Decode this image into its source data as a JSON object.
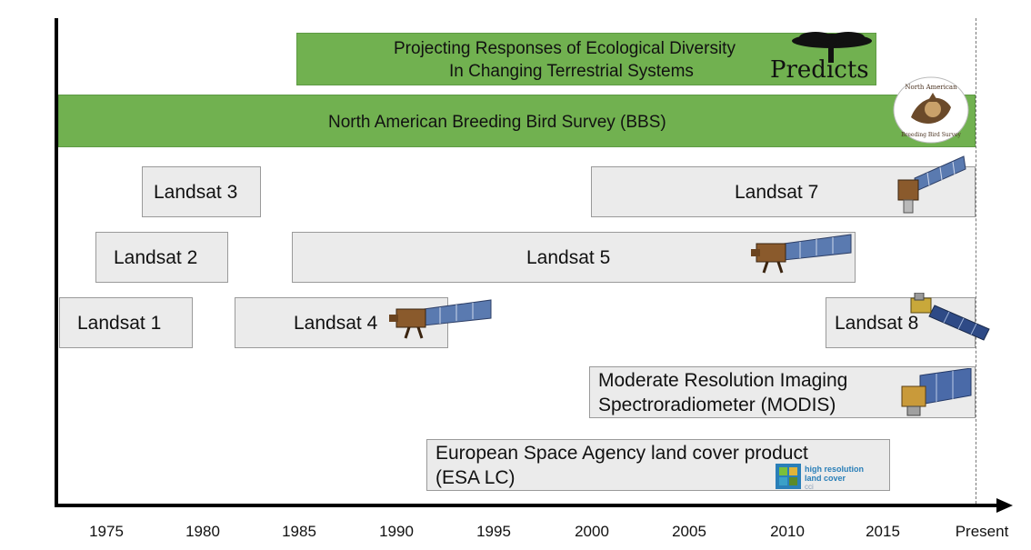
{
  "timeline": {
    "x_axis": {
      "ticks": [
        "1975",
        "1980",
        "1985",
        "1990",
        "1995",
        "2000",
        "2005",
        "2010",
        "2015",
        "Present"
      ]
    },
    "bars": {
      "predicts": {
        "label_line1": "Projecting Responses of Ecological Diversity",
        "label_line2": "In Changing Terrestrial Systems",
        "logo_text": "Predicts"
      },
      "bbs": {
        "label": "North American Breeding Bird Survey (BBS)",
        "badge_line1": "North American",
        "badge_line2": "Breeding Bird Survey"
      },
      "landsat3": {
        "label": "Landsat 3"
      },
      "landsat7": {
        "label": "Landsat 7"
      },
      "landsat2": {
        "label": "Landsat 2"
      },
      "landsat5": {
        "label": "Landsat 5"
      },
      "landsat1": {
        "label": "Landsat 1"
      },
      "landsat4": {
        "label": "Landsat 4"
      },
      "landsat8": {
        "label": "Landsat 8"
      },
      "modis": {
        "label_line1": "Moderate Resolution Imaging",
        "label_line2": "Spectroradiometer (MODIS)"
      },
      "esa": {
        "label_line1": "European Space Agency land cover product",
        "label_line2": "(ESA LC)",
        "logo_line1": "high resolution",
        "logo_line2": "land cover",
        "logo_line3": "cci"
      }
    },
    "colors": {
      "green_bar": "#71b150",
      "gray_bar": "#ebebeb",
      "axis": "#000000"
    }
  }
}
